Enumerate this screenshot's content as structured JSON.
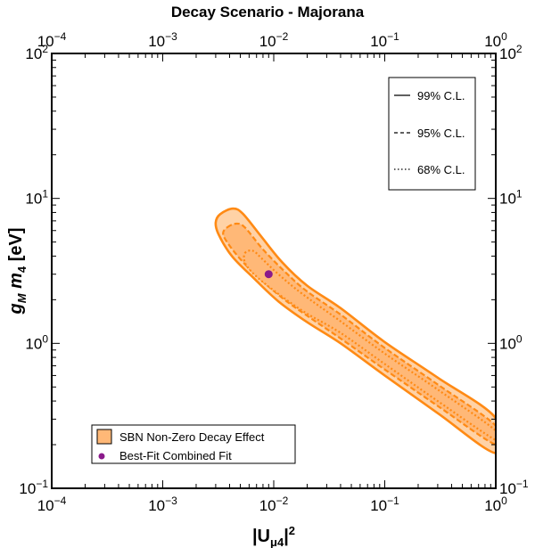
{
  "chart_data": {
    "type": "contour",
    "title": "Decay Scenario - Majorana",
    "xlabel": "|Uμ4|²",
    "ylabel": "gM m4 [eV]",
    "xscale": "log",
    "yscale": "log",
    "xlim": [
      0.0001,
      1
    ],
    "ylim": [
      0.1,
      100
    ],
    "x_tick_labels": [
      {
        "value": 0.0001,
        "base": "10",
        "exp": "−4"
      },
      {
        "value": 0.001,
        "base": "10",
        "exp": "−3"
      },
      {
        "value": 0.01,
        "base": "10",
        "exp": "−2"
      },
      {
        "value": 0.1,
        "base": "10",
        "exp": "−1"
      },
      {
        "value": 1,
        "base": "10",
        "exp": "0"
      }
    ],
    "y_tick_labels": [
      {
        "value": 0.1,
        "base": "10",
        "exp": "−1"
      },
      {
        "value": 1,
        "base": "10",
        "exp": "0"
      },
      {
        "value": 10,
        "base": "10",
        "exp": "1"
      },
      {
        "value": 100,
        "base": "10",
        "exp": "2"
      }
    ],
    "contours": [
      {
        "name": "99% C.L.",
        "style": "solid",
        "points": [
          [
            0.0033,
            7.8
          ],
          [
            0.0043,
            8.5
          ],
          [
            0.0053,
            7.8
          ],
          [
            0.0078,
            5.4
          ],
          [
            0.012,
            3.6
          ],
          [
            0.02,
            2.5
          ],
          [
            0.04,
            1.75
          ],
          [
            0.1,
            1.02
          ],
          [
            0.3,
            0.58
          ],
          [
            1,
            0.305
          ],
          [
            1,
            0.175
          ],
          [
            0.3,
            0.33
          ],
          [
            0.1,
            0.6
          ],
          [
            0.04,
            1.0
          ],
          [
            0.02,
            1.4
          ],
          [
            0.011,
            1.95
          ],
          [
            0.0065,
            2.85
          ],
          [
            0.0042,
            4.0
          ],
          [
            0.0032,
            5.6
          ],
          [
            0.003,
            6.8
          ]
        ]
      },
      {
        "name": "95% C.L.",
        "style": "dashed",
        "points": [
          [
            0.0038,
            6.3
          ],
          [
            0.0046,
            6.7
          ],
          [
            0.0055,
            6.3
          ],
          [
            0.008,
            4.45
          ],
          [
            0.013,
            3.05
          ],
          [
            0.02,
            2.28
          ],
          [
            0.04,
            1.58
          ],
          [
            0.1,
            0.93
          ],
          [
            0.3,
            0.52
          ],
          [
            1,
            0.27
          ],
          [
            1,
            0.2
          ],
          [
            0.3,
            0.37
          ],
          [
            0.1,
            0.66
          ],
          [
            0.04,
            1.08
          ],
          [
            0.02,
            1.55
          ],
          [
            0.012,
            2.05
          ],
          [
            0.0073,
            2.85
          ],
          [
            0.0051,
            3.75
          ],
          [
            0.0039,
            4.85
          ],
          [
            0.0035,
            5.7
          ]
        ]
      },
      {
        "name": "68% C.L.",
        "style": "dotted",
        "points": [
          [
            0.0055,
            4.2
          ],
          [
            0.0065,
            4.35
          ],
          [
            0.0078,
            3.85
          ],
          [
            0.011,
            3.0
          ],
          [
            0.018,
            2.2
          ],
          [
            0.04,
            1.42
          ],
          [
            0.1,
            0.85
          ],
          [
            0.3,
            0.48
          ],
          [
            1,
            0.25
          ],
          [
            1,
            0.215
          ],
          [
            0.3,
            0.4
          ],
          [
            0.1,
            0.72
          ],
          [
            0.04,
            1.18
          ],
          [
            0.02,
            1.6
          ],
          [
            0.013,
            2.0
          ],
          [
            0.0085,
            2.55
          ],
          [
            0.0065,
            3.05
          ],
          [
            0.0055,
            3.6
          ]
        ]
      }
    ],
    "best_fit": {
      "x": 0.009,
      "y": 3.0,
      "label": "Best-Fit Combined Fit"
    },
    "legend_lines": [
      {
        "label": "99% C.L.",
        "style": "solid"
      },
      {
        "label": "95% C.L.",
        "style": "dashed"
      },
      {
        "label": "68% C.L.",
        "style": "dotted"
      }
    ],
    "legend_markers": [
      {
        "label": "SBN Non-Zero Decay Effect",
        "kind": "patch"
      },
      {
        "label": "Best-Fit Combined Fit",
        "kind": "point"
      }
    ],
    "colors": {
      "contour_line": "#ff8a14",
      "fill_outer": "#ffd2a6",
      "fill_inner": "#ffb877",
      "best_fit": "#8b1a8b",
      "frame": "#000000"
    }
  }
}
